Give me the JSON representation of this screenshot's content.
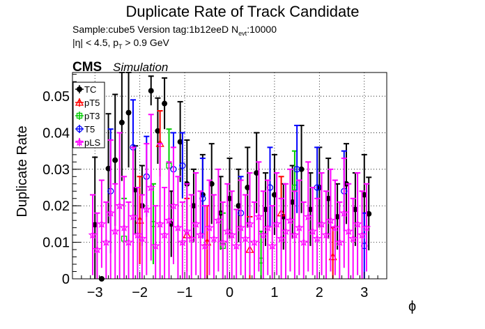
{
  "chart_data": {
    "type": "scatter",
    "title": "Duplicate Rate of Track Candidate",
    "subtitle_line1": "Sample:cube5   Version tag:1b12eeD  N",
    "subtitle_line1_sub": "evt",
    "subtitle_line1_tail": ":10000",
    "subtitle_line2": "|η| < 4.5, p",
    "subtitle_line2_sub": "T",
    "subtitle_line2_tail": " > 0.9 GeV",
    "cms_label": "CMS",
    "simulation_label": "Simulation",
    "xlabel": "ϕ",
    "ylabel": "Duplicate Rate",
    "xlim": [
      -3.5,
      3.5
    ],
    "ylim": [
      0,
      0.0565
    ],
    "xticks": [
      -3,
      -2,
      -1,
      0,
      1,
      2,
      3
    ],
    "xtick_labels": [
      "−3",
      "−2",
      "−1",
      "0",
      "1",
      "2",
      "3"
    ],
    "yticks": [
      0,
      0.01,
      0.02,
      0.03,
      0.04,
      0.05
    ],
    "ytick_labels": [
      "0",
      "0.01",
      "0.02",
      "0.03",
      "0.04",
      "0.05"
    ],
    "grid": true,
    "legend_position": "top-left",
    "series": [
      {
        "name": "TC",
        "color": "#000000",
        "marker": "filled-circle",
        "x": [
          -3.0,
          -2.85,
          -2.7,
          -2.55,
          -2.4,
          -2.25,
          -2.1,
          -1.95,
          -1.75,
          -1.6,
          -1.45,
          -1.3,
          -1.1,
          -0.95,
          -0.8,
          -0.6,
          -0.4,
          -0.2,
          0.0,
          0.2,
          0.4,
          0.6,
          0.8,
          1.0,
          1.2,
          1.4,
          1.6,
          1.8,
          2.0,
          2.2,
          2.4,
          2.6,
          2.8,
          3.0,
          3.1
        ],
        "y": [
          0.0148,
          0.0,
          0.0302,
          0.0325,
          0.0428,
          0.0455,
          0.0244,
          0.02,
          0.0515,
          0.0405,
          0.048,
          0.015,
          0.0375,
          0.026,
          0.02,
          0.023,
          0.026,
          0.018,
          0.022,
          0.02,
          0.025,
          0.029,
          0.019,
          0.023,
          0.017,
          0.021,
          0.03,
          0.019,
          0.025,
          0.022,
          0.017,
          0.026,
          0.019,
          0.023,
          0.0178
        ],
        "err": [
          0.0185,
          0.0,
          0.015,
          0.018,
          0.016,
          0.015,
          0.012,
          0.011,
          0.004,
          0.009,
          0.007,
          0.009,
          0.011,
          0.012,
          0.01,
          0.011,
          0.011,
          0.01,
          0.011,
          0.01,
          0.011,
          0.011,
          0.01,
          0.011,
          0.009,
          0.01,
          0.012,
          0.01,
          0.011,
          0.011,
          0.009,
          0.011,
          0.01,
          0.011,
          0.01
        ]
      },
      {
        "name": "pT5",
        "color": "#ff0000",
        "marker": "open-triangle",
        "x": [
          -2.0,
          -1.55,
          -0.95,
          -0.5,
          0.45,
          1.15,
          2.3
        ],
        "y": [
          0.016,
          0.037,
          0.012,
          0.01,
          0.008,
          0.018,
          0.006
        ],
        "err": [
          0.012,
          0.009,
          0.01,
          0.01,
          0.009,
          0.01,
          0.008
        ]
      },
      {
        "name": "pT3",
        "color": "#00cc00",
        "marker": "open-square",
        "x": [
          -2.35,
          -1.7,
          -1.35,
          -0.15,
          0.7,
          1.45
        ],
        "y": [
          0.011,
          0.015,
          0.031,
          0.009,
          0.005,
          0.025
        ],
        "err": [
          0.011,
          0.011,
          0.01,
          0.009,
          0.008,
          0.01
        ]
      },
      {
        "name": "T5",
        "color": "#0000ff",
        "marker": "open-circle",
        "x": [
          -2.65,
          -2.15,
          -1.85,
          -1.25,
          -1.05,
          -0.6,
          0.25,
          0.9,
          1.5,
          1.95,
          2.55,
          3.0
        ],
        "y": [
          0.024,
          0.036,
          0.028,
          0.03,
          0.031,
          0.022,
          0.018,
          0.025,
          0.03,
          0.025,
          0.024,
          0.009
        ],
        "err": [
          0.017,
          0.013,
          0.011,
          0.01,
          0.009,
          0.011,
          0.01,
          0.011,
          0.012,
          0.011,
          0.011,
          0.009
        ]
      },
      {
        "name": "pLS",
        "color": "#ff00ff",
        "marker": "open-star",
        "x": [
          -3.05,
          -2.95,
          -2.85,
          -2.75,
          -2.65,
          -2.55,
          -2.45,
          -2.35,
          -2.25,
          -2.15,
          -2.05,
          -1.95,
          -1.85,
          -1.75,
          -1.65,
          -1.55,
          -1.45,
          -1.35,
          -1.25,
          -1.15,
          -1.05,
          -0.95,
          -0.85,
          -0.75,
          -0.65,
          -0.55,
          -0.45,
          -0.35,
          -0.25,
          -0.15,
          -0.05,
          0.05,
          0.15,
          0.25,
          0.35,
          0.45,
          0.55,
          0.65,
          0.75,
          0.85,
          0.95,
          1.05,
          1.15,
          1.25,
          1.35,
          1.45,
          1.55,
          1.65,
          1.75,
          1.85,
          1.95,
          2.05,
          2.15,
          2.25,
          2.35,
          2.45,
          2.55,
          2.65,
          2.75,
          2.85,
          2.95,
          3.05
        ],
        "y": [
          0.012,
          0.008,
          0.015,
          0.01,
          0.018,
          0.013,
          0.02,
          0.014,
          0.01,
          0.017,
          0.012,
          0.011,
          0.019,
          0.025,
          0.009,
          0.015,
          0.012,
          0.016,
          0.02,
          0.014,
          0.01,
          0.013,
          0.011,
          0.015,
          0.012,
          0.009,
          0.014,
          0.011,
          0.016,
          0.01,
          0.013,
          0.012,
          0.009,
          0.014,
          0.011,
          0.015,
          0.01,
          0.017,
          0.012,
          0.014,
          0.009,
          0.015,
          0.011,
          0.013,
          0.016,
          0.012,
          0.014,
          0.01,
          0.017,
          0.013,
          0.011,
          0.015,
          0.012,
          0.016,
          0.014,
          0.01,
          0.018,
          0.013,
          0.011,
          0.015,
          0.012,
          0.014
        ],
        "err": [
          0.011,
          0.01,
          0.012,
          0.011,
          0.02,
          0.013,
          0.02,
          0.014,
          0.011,
          0.019,
          0.013,
          0.012,
          0.018,
          0.02,
          0.011,
          0.022,
          0.013,
          0.016,
          0.016,
          0.014,
          0.011,
          0.013,
          0.012,
          0.014,
          0.012,
          0.011,
          0.013,
          0.012,
          0.014,
          0.011,
          0.013,
          0.012,
          0.01,
          0.013,
          0.012,
          0.014,
          0.011,
          0.015,
          0.012,
          0.013,
          0.011,
          0.014,
          0.011,
          0.013,
          0.014,
          0.012,
          0.013,
          0.011,
          0.015,
          0.012,
          0.011,
          0.014,
          0.012,
          0.014,
          0.013,
          0.011,
          0.015,
          0.013,
          0.011,
          0.014,
          0.012,
          0.012
        ]
      }
    ]
  }
}
